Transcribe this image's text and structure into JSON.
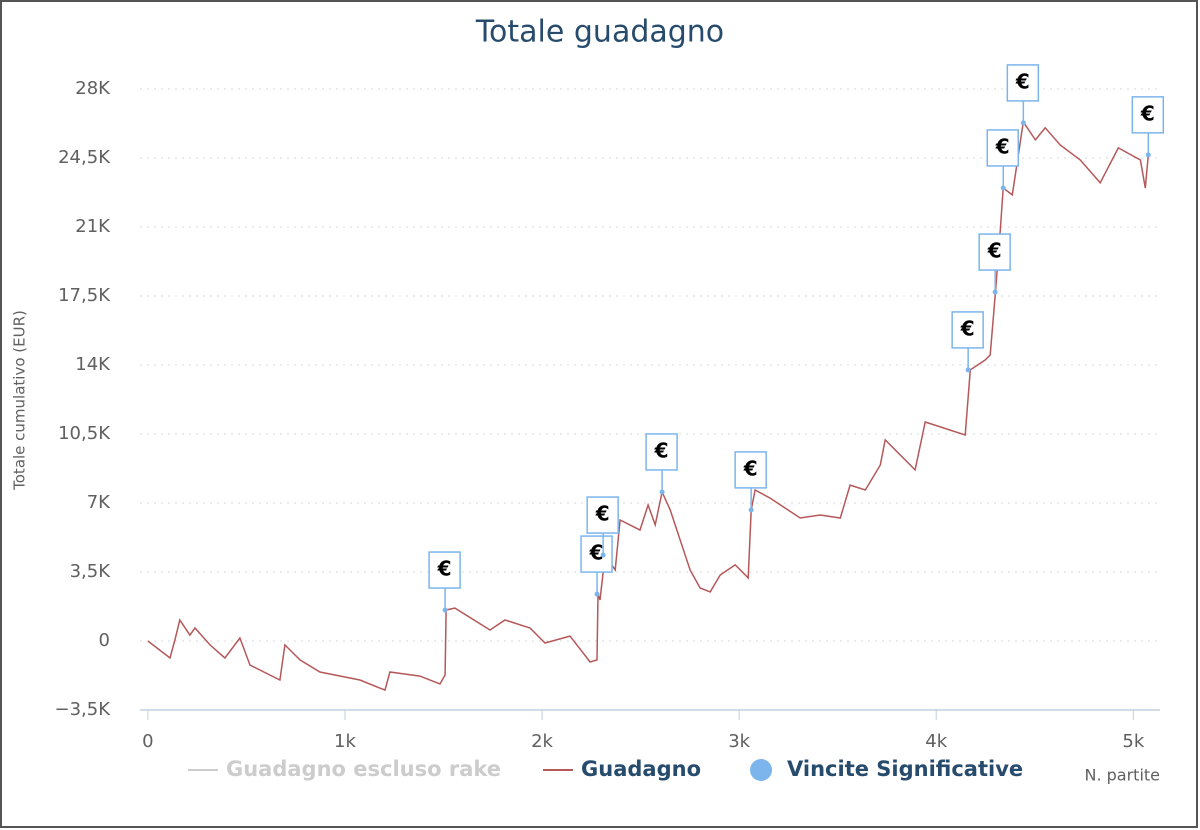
{
  "chart_data": {
    "type": "line",
    "title": "Totale guadagno",
    "ylabel": "Totale cumulativo (EUR)",
    "xlabel": "N. partite",
    "marker_label": "€",
    "xlim": [
      -40,
      5110
    ],
    "ylim": [
      -3500,
      28000
    ],
    "xticks": [
      0,
      {
        "value": 1000,
        "label": "1k"
      },
      {
        "value": 2000,
        "label": "2k"
      },
      {
        "value": 3000,
        "label": "3k"
      },
      {
        "value": 4000,
        "label": "4k"
      },
      {
        "value": 5000,
        "label": "5k"
      }
    ],
    "yticks": [
      {
        "value": -3500,
        "label": "−3,5K"
      },
      0,
      {
        "value": 3500,
        "label": "3,5K"
      },
      {
        "value": 7000,
        "label": "7K"
      },
      {
        "value": 10500,
        "label": "10,5K"
      },
      {
        "value": 14000,
        "label": "14K"
      },
      {
        "value": 17500,
        "label": "17,5K"
      },
      {
        "value": 21000,
        "label": "21K"
      },
      {
        "value": 24500,
        "label": "24,5K"
      },
      {
        "value": 28000,
        "label": "28K"
      }
    ],
    "grid": true,
    "legend": [
      {
        "name": "Guadagno escluso rake",
        "color": "#cccccc",
        "visible": false
      }
    ],
    "series": [
      {
        "name": "Guadagno",
        "type": "line",
        "color": "#b5585a",
        "x": [
          0,
          112,
          137,
          162,
          213,
          239,
          315,
          391,
          467,
          518,
          670,
          695,
          772,
          873,
          1076,
          1203,
          1228,
          1380,
          1482,
          1508,
          1513,
          1558,
          1736,
          1812,
          1939,
          2015,
          2142,
          2244,
          2279,
          2284,
          2294,
          2320,
          2371,
          2396,
          2497,
          2538,
          2574,
          2609,
          2650,
          2751,
          2802,
          2853,
          2904,
          2980,
          3046,
          3061,
          3081,
          3157,
          3310,
          3411,
          3513,
          3563,
          3640,
          3716,
          3741,
          3893,
          3944,
          4147,
          4173,
          4249,
          4274,
          4299,
          4325,
          4340,
          4386,
          4442,
          4503,
          4553,
          4629,
          4731,
          4832,
          4924,
          5036,
          5061,
          5076
        ],
        "values": [
          0,
          -860,
          50,
          1065,
          300,
          660,
          -200,
          -860,
          150,
          -1220,
          -1980,
          -200,
          -960,
          -1570,
          -1980,
          -2490,
          -1570,
          -1780,
          -2180,
          -1720,
          1570,
          1670,
          560,
          1065,
          660,
          -100,
          250,
          -1065,
          -960,
          2380,
          2080,
          4360,
          3600,
          6140,
          5630,
          6900,
          5890,
          7560,
          6650,
          3600,
          2690,
          2490,
          3350,
          3860,
          3200,
          6650,
          7660,
          7250,
          6240,
          6390,
          6240,
          7910,
          7660,
          8930,
          10200,
          8680,
          11110,
          10450,
          13750,
          14260,
          14510,
          17550,
          20850,
          22980,
          22630,
          26330,
          25420,
          26030,
          25160,
          24400,
          23240,
          25010,
          24400,
          22980,
          24660
        ]
      },
      {
        "name": "Vincite Significative",
        "type": "scatter",
        "color": "#7cb5ec",
        "x": [
          1508,
          2279,
          2310,
          2609,
          3061,
          4162,
          4299,
          4340,
          4442,
          5076
        ],
        "values": [
          1570,
          2380,
          4360,
          7560,
          6650,
          13750,
          17700,
          22980,
          26280,
          24660
        ]
      }
    ]
  }
}
